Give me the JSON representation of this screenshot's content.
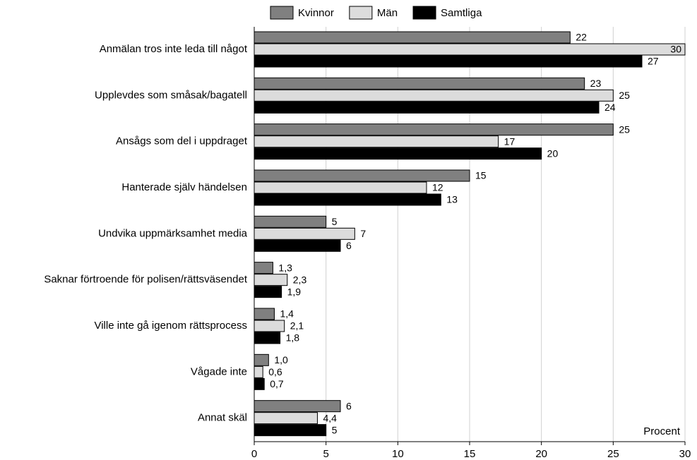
{
  "chart_data": {
    "type": "barh",
    "categories": [
      "Anmälan tros inte leda till något",
      "Upplevdes som småsak/bagatell",
      "Ansågs som del i uppdraget",
      "Hanterade själv händelsen",
      "Undvika uppmärksamhet media",
      "Saknar förtroende för polisen/rättsväsendet",
      "Ville inte gå igenom rättsprocess",
      "Vågade inte",
      "Annat skäl"
    ],
    "series": [
      {
        "name": "Kvinnor",
        "color": "#808080",
        "values": [
          22,
          23,
          25,
          15,
          5,
          1.3,
          1.4,
          1.0,
          6
        ],
        "value_labels": [
          "22",
          "23",
          "25",
          "15",
          "5",
          "1,3",
          "1,4",
          "1,0",
          "6"
        ]
      },
      {
        "name": "Män",
        "color": "#dcdcdc",
        "values": [
          30,
          25,
          17,
          12,
          7,
          2.3,
          2.1,
          0.6,
          4.4
        ],
        "value_labels": [
          "30",
          "25",
          "17",
          "12",
          "7",
          "2,3",
          "2,1",
          "0,6",
          "4,4"
        ]
      },
      {
        "name": "Samtliga",
        "color": "#000000",
        "values": [
          27,
          24,
          20,
          13,
          6,
          1.9,
          1.8,
          0.7,
          5
        ],
        "value_labels": [
          "27",
          "24",
          "20",
          "13",
          "6",
          "1,9",
          "1,8",
          "0,7",
          "5"
        ]
      }
    ],
    "xlabel": "Procent",
    "xlim": [
      0,
      30
    ],
    "xticks": [
      0,
      5,
      10,
      15,
      20,
      25,
      30
    ],
    "grid": true,
    "legend": "top"
  }
}
